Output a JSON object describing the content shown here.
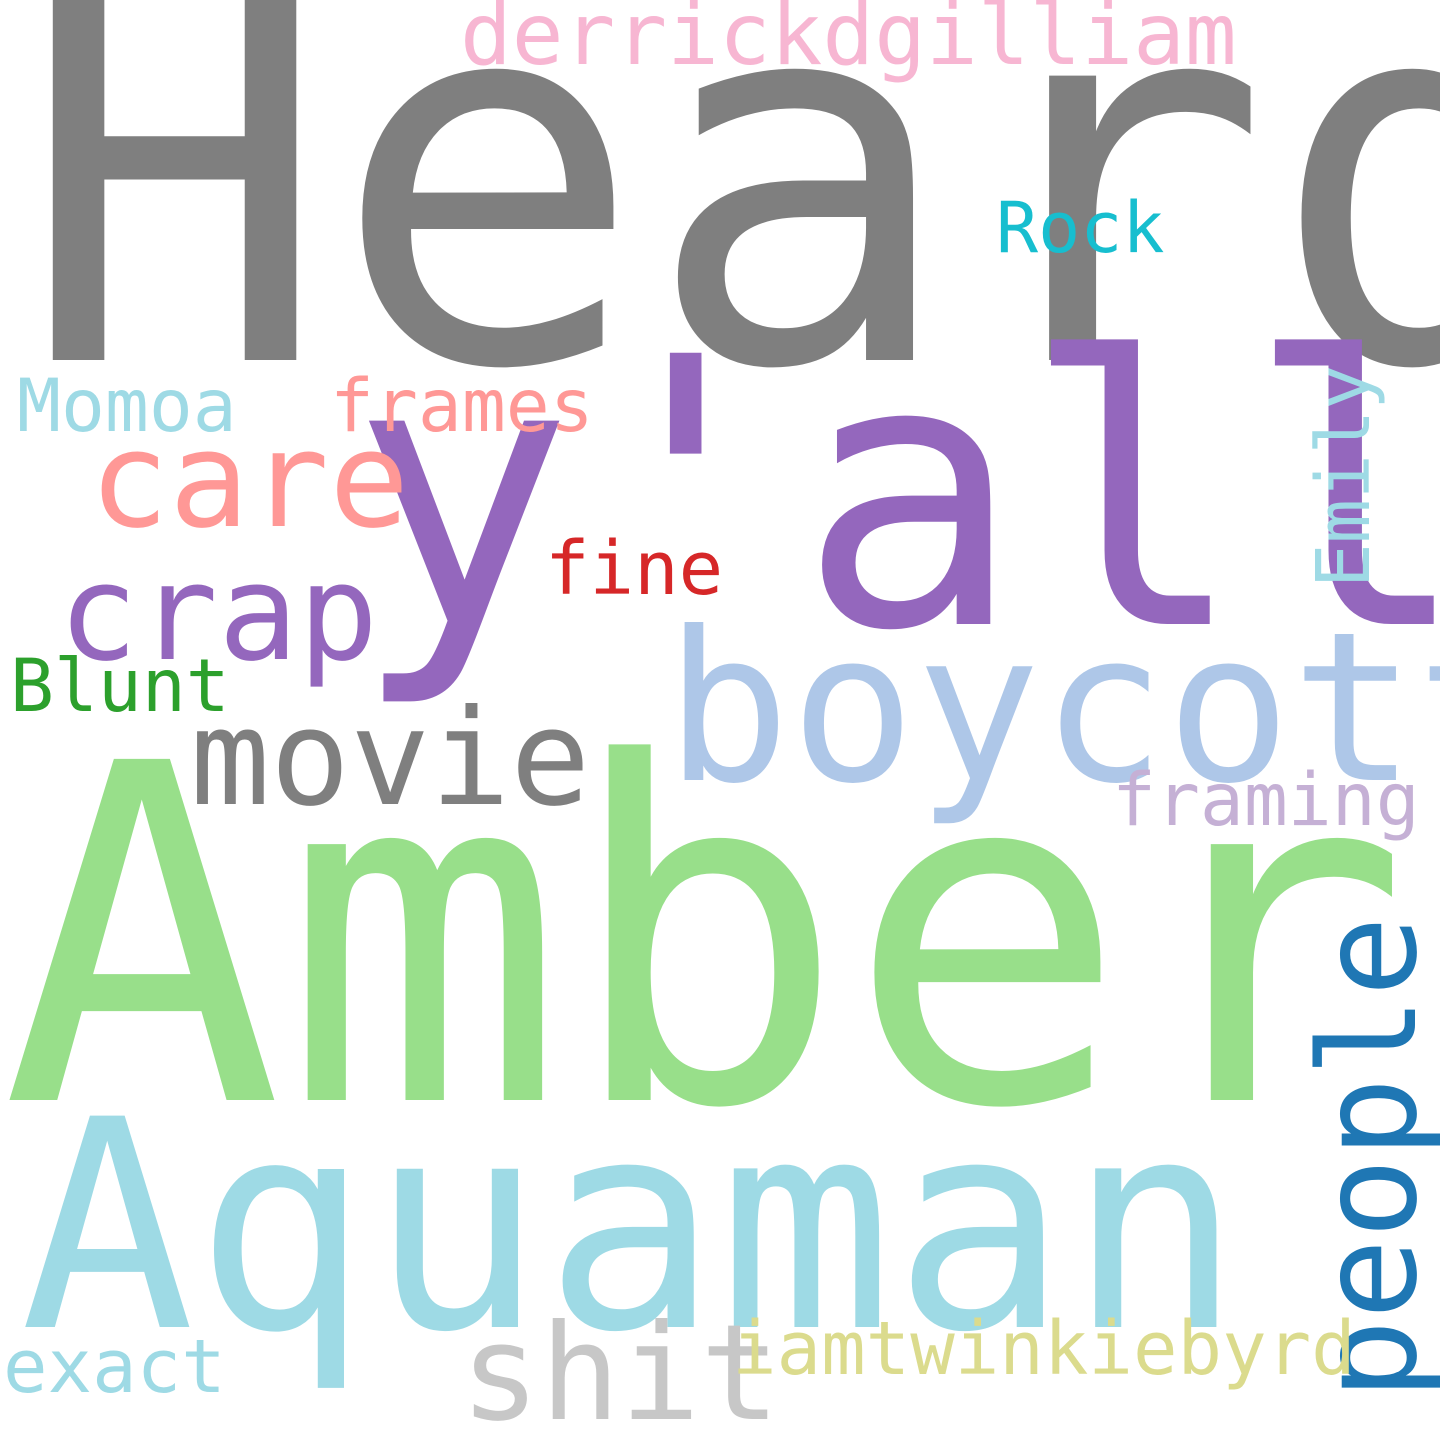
{
  "words": {
    "heard": {
      "text": "Heard",
      "color": "#7f7f7f"
    },
    "amber": {
      "text": "Amber",
      "color": "#98df8a"
    },
    "yall": {
      "text": "y'all",
      "color": "#9467bd"
    },
    "aquaman": {
      "text": "Aquaman",
      "color": "#9edae5"
    },
    "boycott": {
      "text": "boycott",
      "color": "#aec7e8"
    },
    "people": {
      "text": "people",
      "color": "#1f77b4"
    },
    "movie": {
      "text": "movie",
      "color": "#7f7f7f"
    },
    "shit": {
      "text": "shit",
      "color": "#c7c7c7"
    },
    "care": {
      "text": "care",
      "color": "#ff9896"
    },
    "crap": {
      "text": "crap",
      "color": "#9467bd"
    },
    "derrickdgilliam": {
      "text": "derrickdgilliam",
      "color": "#f7b6d2"
    },
    "iamtwinkiebyrd": {
      "text": "iamtwinkiebyrd",
      "color": "#dbdb8d"
    },
    "frames": {
      "text": "frames",
      "color": "#ff9896"
    },
    "framing": {
      "text": "framing",
      "color": "#c5b0d5"
    },
    "momoa": {
      "text": "Momoa",
      "color": "#9edae5"
    },
    "rock": {
      "text": "Rock",
      "color": "#17becf"
    },
    "emily": {
      "text": "Emily",
      "color": "#9edae5"
    },
    "fine": {
      "text": "fine",
      "color": "#d62728"
    },
    "blunt": {
      "text": "Blunt",
      "color": "#2ca02c"
    },
    "exact": {
      "text": "exact",
      "color": "#9edae5"
    }
  }
}
